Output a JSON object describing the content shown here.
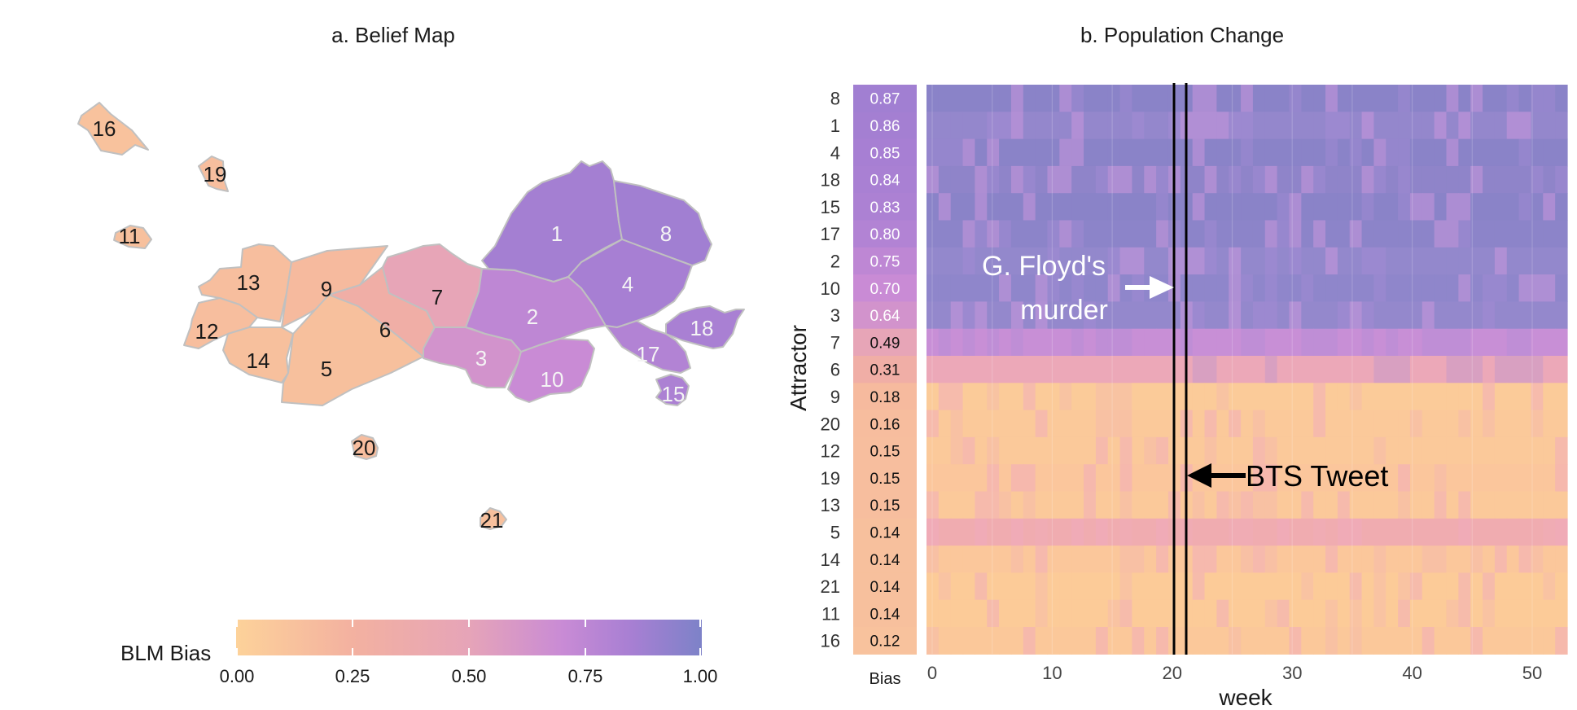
{
  "chart_data": [
    {
      "type": "map",
      "title": "a. Belief Map",
      "legend": {
        "title": "BLM Bias",
        "ticks": [
          "0.00",
          "0.25",
          "0.50",
          "0.75",
          "1.00"
        ],
        "range": [
          0,
          1
        ],
        "placement": "bottom"
      },
      "regions": [
        {
          "id": "16",
          "bias": 0.12
        },
        {
          "id": "19",
          "bias": 0.15
        },
        {
          "id": "11",
          "bias": 0.14
        },
        {
          "id": "13",
          "bias": 0.15
        },
        {
          "id": "9",
          "bias": 0.18
        },
        {
          "id": "12",
          "bias": 0.15
        },
        {
          "id": "14",
          "bias": 0.14
        },
        {
          "id": "5",
          "bias": 0.14
        },
        {
          "id": "6",
          "bias": 0.31
        },
        {
          "id": "7",
          "bias": 0.49
        },
        {
          "id": "1",
          "bias": 0.86
        },
        {
          "id": "8",
          "bias": 0.87
        },
        {
          "id": "2",
          "bias": 0.75
        },
        {
          "id": "4",
          "bias": 0.85
        },
        {
          "id": "3",
          "bias": 0.64
        },
        {
          "id": "10",
          "bias": 0.7
        },
        {
          "id": "17",
          "bias": 0.8
        },
        {
          "id": "18",
          "bias": 0.84
        },
        {
          "id": "15",
          "bias": 0.83
        },
        {
          "id": "20",
          "bias": 0.16
        },
        {
          "id": "21",
          "bias": 0.14
        }
      ]
    },
    {
      "type": "heatmap",
      "title": "b. Population Change",
      "xlabel": "week",
      "ylabel": "Attractor",
      "bias_column_label": "Bias",
      "xlim": [
        0,
        52
      ],
      "xticks": [
        "0",
        "10",
        "20",
        "30",
        "40",
        "50"
      ],
      "rows": [
        {
          "attractor": "8",
          "bias": "0.87",
          "value": 0.87
        },
        {
          "attractor": "1",
          "bias": "0.86",
          "value": 0.86
        },
        {
          "attractor": "4",
          "bias": "0.85",
          "value": 0.85
        },
        {
          "attractor": "18",
          "bias": "0.84",
          "value": 0.84
        },
        {
          "attractor": "15",
          "bias": "0.83",
          "value": 0.83
        },
        {
          "attractor": "17",
          "bias": "0.80",
          "value": 0.8
        },
        {
          "attractor": "2",
          "bias": "0.75",
          "value": 0.75
        },
        {
          "attractor": "10",
          "bias": "0.70",
          "value": 0.7
        },
        {
          "attractor": "3",
          "bias": "0.64",
          "value": 0.64
        },
        {
          "attractor": "7",
          "bias": "0.49",
          "value": 0.49
        },
        {
          "attractor": "6",
          "bias": "0.31",
          "value": 0.31
        },
        {
          "attractor": "9",
          "bias": "0.18",
          "value": 0.18
        },
        {
          "attractor": "20",
          "bias": "0.16",
          "value": 0.16
        },
        {
          "attractor": "12",
          "bias": "0.15",
          "value": 0.15
        },
        {
          "attractor": "19",
          "bias": "0.15",
          "value": 0.15
        },
        {
          "attractor": "13",
          "bias": "0.15",
          "value": 0.15
        },
        {
          "attractor": "5",
          "bias": "0.14",
          "value": 0.14
        },
        {
          "attractor": "14",
          "bias": "0.14",
          "value": 0.14
        },
        {
          "attractor": "21",
          "bias": "0.14",
          "value": 0.14
        },
        {
          "attractor": "11",
          "bias": "0.14",
          "value": 0.14
        },
        {
          "attractor": "16",
          "bias": "0.12",
          "value": 0.12
        }
      ],
      "row_base_colors": {
        "8": "#8a83c8",
        "1": "#9487cc",
        "4": "#8a83c8",
        "18": "#8f84c9",
        "15": "#8a83c8",
        "17": "#8c84c9",
        "2": "#9388cc",
        "10": "#8f86cb",
        "3": "#9488cc",
        "7": "#c88fd6",
        "6": "#eca8b8",
        "9": "#fbcb99",
        "20": "#fbc99a",
        "12": "#fbc99a",
        "19": "#fbc69c",
        "13": "#fbc99a",
        "5": "#f0acb0",
        "14": "#fbc79b",
        "21": "#fccb98",
        "11": "#fccb98",
        "16": "#fbc89a"
      },
      "annotations": [
        {
          "text_lines": [
            "G. Floyd's",
            "murder"
          ],
          "week": 20,
          "arrow": "white"
        },
        {
          "text": "BTS Tweet",
          "week": 21,
          "arrow": "black"
        }
      ],
      "event_lines_weeks": [
        20,
        21
      ]
    }
  ],
  "colors": {
    "scale": [
      "#fdd29a",
      "#f3b1a0",
      "#e6a4b8",
      "#c98bd5",
      "#a77fd3",
      "#7d82c8"
    ],
    "region_border": "#c0c0c0",
    "ink": "#1a1a1a",
    "label_light": "#f4f4f4"
  }
}
